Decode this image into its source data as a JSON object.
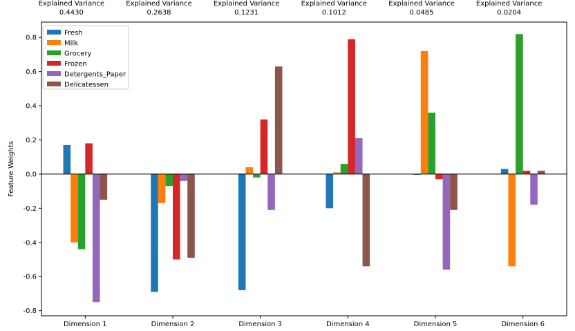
{
  "chart_data": {
    "type": "bar",
    "title": "",
    "xlabel": "",
    "ylabel": "Feature Weights",
    "categories": [
      "Dimension 1",
      "Dimension 2",
      "Dimension 3",
      "Dimension 4",
      "Dimension 5",
      "Dimension 6"
    ],
    "annotations": [
      {
        "label": "Explained Variance",
        "value": "0.4430"
      },
      {
        "label": "Explained Variance",
        "value": "0.2638"
      },
      {
        "label": "Explained Variance",
        "value": "0.1231"
      },
      {
        "label": "Explained Variance",
        "value": "0.1012"
      },
      {
        "label": "Explained Variance",
        "value": "0.0485"
      },
      {
        "label": "Explained Variance",
        "value": "0.0204"
      }
    ],
    "series": [
      {
        "name": "Fresh",
        "color": "#1f77b4",
        "values": [
          0.17,
          -0.69,
          -0.68,
          -0.2,
          -0.0,
          0.03
        ]
      },
      {
        "name": "Milk",
        "color": "#ff7f0e",
        "values": [
          -0.4,
          -0.17,
          0.04,
          0.01,
          0.72,
          -0.54
        ]
      },
      {
        "name": "Grocery",
        "color": "#2ca02c",
        "values": [
          -0.44,
          -0.07,
          -0.02,
          0.06,
          0.36,
          0.82
        ]
      },
      {
        "name": "Frozen",
        "color": "#d62728",
        "values": [
          0.18,
          -0.5,
          0.32,
          0.79,
          -0.03,
          0.02
        ]
      },
      {
        "name": "Detergents_Paper",
        "color": "#9467bd",
        "values": [
          -0.75,
          -0.04,
          -0.21,
          0.21,
          -0.56,
          -0.18
        ]
      },
      {
        "name": "Delicatessen",
        "color": "#8c564b",
        "values": [
          -0.15,
          -0.49,
          0.63,
          -0.54,
          -0.21,
          0.02
        ]
      }
    ],
    "ylim": [
      -0.83,
      0.89
    ],
    "yticks": [
      "-0.8",
      "-0.6",
      "-0.4",
      "-0.2",
      "0.0",
      "0.2",
      "0.4",
      "0.6",
      "0.8"
    ],
    "grid": false,
    "legend_position": "top-left"
  }
}
